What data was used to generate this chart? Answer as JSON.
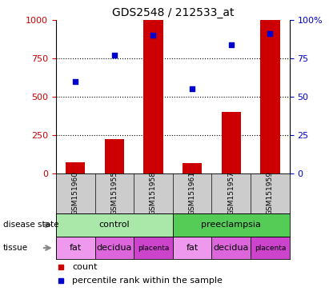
{
  "title": "GDS2548 / 212533_at",
  "samples": [
    "GSM151960",
    "GSM151955",
    "GSM151958",
    "GSM151961",
    "GSM151957",
    "GSM151959"
  ],
  "count_values": [
    75,
    225,
    1000,
    65,
    400,
    1000
  ],
  "percentile_values": [
    60,
    77,
    90,
    55,
    84,
    91
  ],
  "ylim_left": [
    0,
    1000
  ],
  "ylim_right": [
    0,
    100
  ],
  "yticks_left": [
    0,
    250,
    500,
    750,
    1000
  ],
  "ytick_labels_left": [
    "0",
    "250",
    "500",
    "750",
    "1000"
  ],
  "yticks_right": [
    0,
    25,
    50,
    75,
    100
  ],
  "ytick_labels_right": [
    "0",
    "25",
    "50",
    "75",
    "100%"
  ],
  "bar_color": "#cc0000",
  "dot_color": "#0000cc",
  "disease_state": [
    {
      "label": "control",
      "span": [
        0,
        3
      ],
      "color": "#aae8aa"
    },
    {
      "label": "preeclampsia",
      "span": [
        3,
        6
      ],
      "color": "#55cc55"
    }
  ],
  "tissue": [
    {
      "label": "fat",
      "span": [
        0,
        1
      ],
      "color": "#ee99ee"
    },
    {
      "label": "decidua",
      "span": [
        1,
        2
      ],
      "color": "#dd66dd"
    },
    {
      "label": "placenta",
      "span": [
        2,
        3
      ],
      "color": "#cc44cc"
    },
    {
      "label": "fat",
      "span": [
        3,
        4
      ],
      "color": "#ee99ee"
    },
    {
      "label": "decidua",
      "span": [
        4,
        5
      ],
      "color": "#dd66dd"
    },
    {
      "label": "placenta",
      "span": [
        5,
        6
      ],
      "color": "#cc44cc"
    }
  ],
  "label_disease_state": "disease state",
  "label_tissue": "tissue",
  "legend_count": "count",
  "legend_percentile": "percentile rank within the sample",
  "background_color": "#ffffff",
  "grid_color": "#000000",
  "tick_color_left": "#cc0000",
  "tick_color_right": "#0000cc",
  "bar_width": 0.5,
  "sample_bg_color": "#cccccc"
}
